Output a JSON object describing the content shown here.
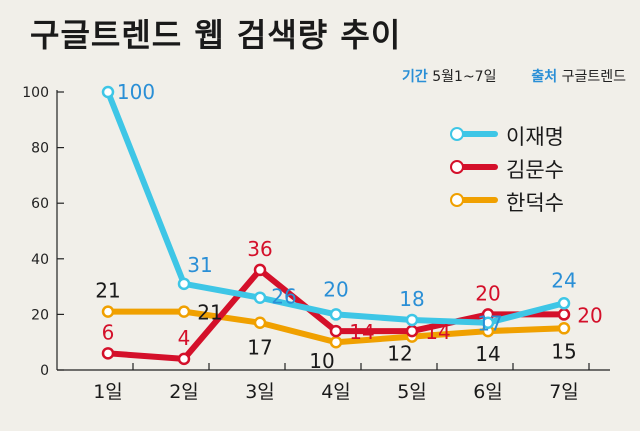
{
  "header": {
    "title": "구글트렌드 웹 검색량 추이",
    "period_key": "기간",
    "period_value": "5월1~7일",
    "source_key": "출처",
    "source_value": "구글트렌드"
  },
  "chart_data": {
    "type": "line",
    "title": "구글트렌드 웹 검색량 추이",
    "categories": [
      "1일",
      "2일",
      "3일",
      "4일",
      "5일",
      "6일",
      "7일"
    ],
    "ylim": [
      0,
      100
    ],
    "yticks": [
      "0",
      "20",
      "40",
      "60",
      "80",
      "100"
    ],
    "grid": false,
    "legend_position": "top-right",
    "series": [
      {
        "name": "이재명",
        "color": "#3ec6e6",
        "label_color": "#2a8fd6",
        "values": [
          100,
          31,
          26,
          20,
          18,
          17,
          24
        ]
      },
      {
        "name": "김문수",
        "color": "#d4102a",
        "label_color": "#d4102a",
        "values": [
          6,
          4,
          36,
          14,
          14,
          20,
          20
        ]
      },
      {
        "name": "한덕수",
        "color": "#f0a000",
        "label_color": "#1a1a1a",
        "values": [
          21,
          21,
          17,
          10,
          12,
          14,
          15
        ]
      }
    ]
  }
}
